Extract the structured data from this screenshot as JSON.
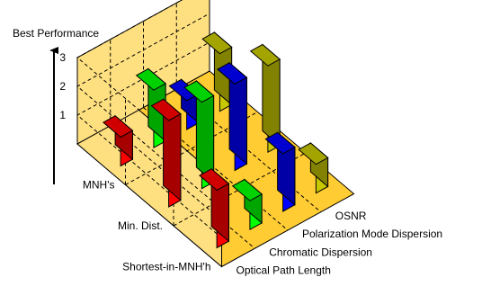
{
  "chart_data": {
    "type": "bar",
    "title": "",
    "zlabel": "Best Performance",
    "zticks": [
      "1",
      "2",
      "3"
    ],
    "zlim": [
      0,
      3
    ],
    "grid": true,
    "row_categories": [
      "MNH's",
      "Min. Dist.",
      "Shortest-in-MNH'h"
    ],
    "column_categories": [
      "Optical Path Length",
      "Chromatic Dispersion",
      "Polarization Mode Dispersion",
      "OSNR"
    ],
    "series": [
      {
        "row": "MNH's",
        "values": [
          1,
          2,
          1,
          2
        ]
      },
      {
        "row": "Min. Dist.",
        "values": [
          3,
          3,
          3,
          3
        ]
      },
      {
        "row": "Shortest-in-MNH'h",
        "values": [
          2,
          1,
          2,
          1
        ]
      }
    ],
    "colors": {
      "Optical Path Length": "#ff0000",
      "Chromatic Dispersion": "#00ff00",
      "Polarization Mode Dispersion": "#0000ff",
      "OSNR": "#c8c800",
      "floor": "#ffcc33",
      "back_walls": "#ffe080"
    }
  }
}
